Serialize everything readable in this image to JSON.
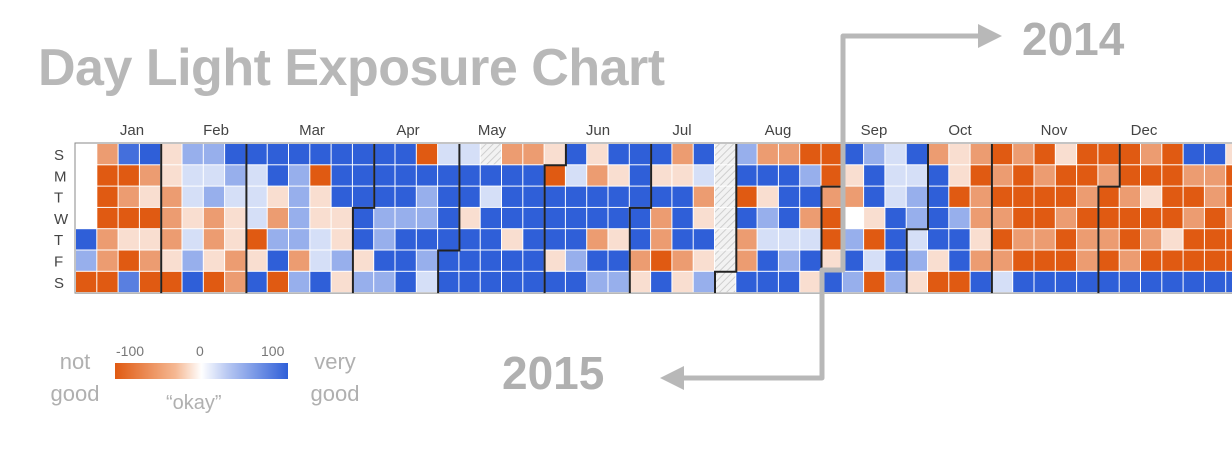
{
  "title": "Day Light Exposure Chart",
  "annotations": {
    "year_top": "2014",
    "year_bottom": "2015"
  },
  "legend": {
    "low_label_line1": "not",
    "low_label_line2": "good",
    "high_label_line1": "very",
    "high_label_line2": "good",
    "mid_label": "“okay”",
    "tick_min": "-100",
    "tick_mid": "0",
    "tick_max": "100",
    "colors": {
      "low": "#e05a12",
      "mid": "#ffffff",
      "high": "#2f5fd8"
    }
  },
  "chart_data": {
    "type": "heatmap",
    "title": "Day Light Exposure Chart",
    "x_labels": [
      "Jan",
      "Feb",
      "Mar",
      "Apr",
      "May",
      "Jun",
      "Jul",
      "Aug",
      "Sep",
      "Oct",
      "Nov",
      "Dec"
    ],
    "y_labels": [
      "S",
      "M",
      "T",
      "W",
      "T",
      "F",
      "S"
    ],
    "value_range": [
      -100,
      100
    ],
    "missing_value": "no data (hatched)",
    "columns": [
      [
        null,
        null,
        null,
        null,
        100,
        50,
        -100
      ],
      [
        -60,
        -100,
        -100,
        -100,
        -60,
        -60,
        -100
      ],
      [
        90,
        -100,
        -60,
        -100,
        -20,
        -100,
        80
      ],
      [
        100,
        -60,
        -20,
        -100,
        -20,
        -60,
        -100
      ],
      [
        -20,
        -20,
        -60,
        -60,
        -60,
        -20,
        -100
      ],
      [
        50,
        20,
        20,
        -20,
        20,
        50,
        100
      ],
      [
        50,
        20,
        50,
        -60,
        -60,
        -20,
        -100
      ],
      [
        100,
        50,
        20,
        -20,
        -20,
        -60,
        -60
      ],
      [
        100,
        20,
        20,
        20,
        -100,
        -20,
        100
      ],
      [
        100,
        100,
        -20,
        -60,
        50,
        100,
        -100
      ],
      [
        100,
        50,
        50,
        50,
        50,
        -60,
        50
      ],
      [
        100,
        -100,
        -20,
        -20,
        20,
        20,
        100
      ],
      [
        100,
        100,
        100,
        -20,
        -20,
        50,
        -20
      ],
      [
        100,
        100,
        100,
        100,
        100,
        -20,
        50
      ],
      [
        100,
        100,
        100,
        50,
        50,
        100,
        50
      ],
      [
        100,
        100,
        100,
        50,
        100,
        100,
        100
      ],
      [
        -100,
        100,
        50,
        50,
        100,
        50,
        20
      ],
      [
        20,
        100,
        100,
        100,
        100,
        100,
        100
      ],
      [
        20,
        100,
        100,
        -20,
        100,
        100,
        100
      ],
      [
        null,
        100,
        20,
        100,
        100,
        100,
        100
      ],
      [
        -60,
        100,
        100,
        100,
        -20,
        100,
        100
      ],
      [
        -60,
        100,
        100,
        100,
        100,
        100,
        100
      ],
      [
        -20,
        -100,
        100,
        100,
        100,
        -20,
        100
      ],
      [
        100,
        20,
        100,
        100,
        100,
        50,
        100
      ],
      [
        -20,
        -60,
        100,
        100,
        -60,
        100,
        50
      ],
      [
        100,
        -20,
        100,
        100,
        -20,
        100,
        50
      ],
      [
        100,
        100,
        100,
        100,
        100,
        -60,
        -20
      ],
      [
        100,
        -20,
        100,
        -60,
        -60,
        -100,
        100
      ],
      [
        -60,
        -20,
        100,
        100,
        100,
        -60,
        -20
      ],
      [
        100,
        20,
        -60,
        -20,
        100,
        -20,
        50
      ],
      [
        null,
        null,
        null,
        null,
        null,
        null,
        null
      ],
      [
        50,
        100,
        -100,
        100,
        -60,
        -60,
        100
      ],
      [
        -60,
        100,
        -20,
        50,
        20,
        100,
        100
      ],
      [
        -60,
        100,
        100,
        100,
        20,
        50,
        100
      ],
      [
        -100,
        50,
        100,
        -60,
        20,
        100,
        -20
      ],
      [
        -100,
        -100,
        -60,
        -100,
        -100,
        -20,
        100
      ],
      [
        100,
        -20,
        -60,
        0,
        50,
        100,
        50
      ],
      [
        50,
        100,
        100,
        -20,
        -100,
        20,
        -100
      ],
      [
        20,
        20,
        20,
        100,
        100,
        100,
        50
      ],
      [
        100,
        20,
        50,
        50,
        20,
        50,
        -20
      ],
      [
        -60,
        100,
        100,
        100,
        100,
        -20,
        -100
      ],
      [
        -20,
        -20,
        -100,
        50,
        100,
        100,
        -100
      ],
      [
        -60,
        -100,
        -60,
        -60,
        -20,
        -60,
        100
      ],
      [
        -100,
        -60,
        -100,
        -60,
        -100,
        -60,
        20
      ],
      [
        -60,
        -100,
        -100,
        -100,
        -60,
        -100,
        100
      ],
      [
        -100,
        -60,
        -100,
        -100,
        -60,
        -100,
        100
      ],
      [
        -20,
        -100,
        -100,
        -60,
        -100,
        -100,
        100
      ],
      [
        -100,
        -100,
        -60,
        -100,
        -60,
        -60,
        100
      ],
      [
        -100,
        -60,
        -100,
        -100,
        -60,
        -100,
        100
      ],
      [
        -100,
        -100,
        -60,
        -100,
        -100,
        -60,
        100
      ],
      [
        -60,
        -100,
        -20,
        -100,
        -60,
        -100,
        100
      ],
      [
        -100,
        -100,
        -100,
        -100,
        -20,
        -100,
        100
      ],
      [
        100,
        -60,
        -100,
        -60,
        -100,
        -100,
        100
      ],
      [
        100,
        -60,
        -60,
        -100,
        -100,
        -100,
        100
      ],
      [
        -20,
        -100,
        -100,
        -60,
        -100,
        -100,
        100
      ],
      [
        100,
        -100,
        -100,
        -100,
        -60,
        -100,
        100
      ]
    ]
  }
}
